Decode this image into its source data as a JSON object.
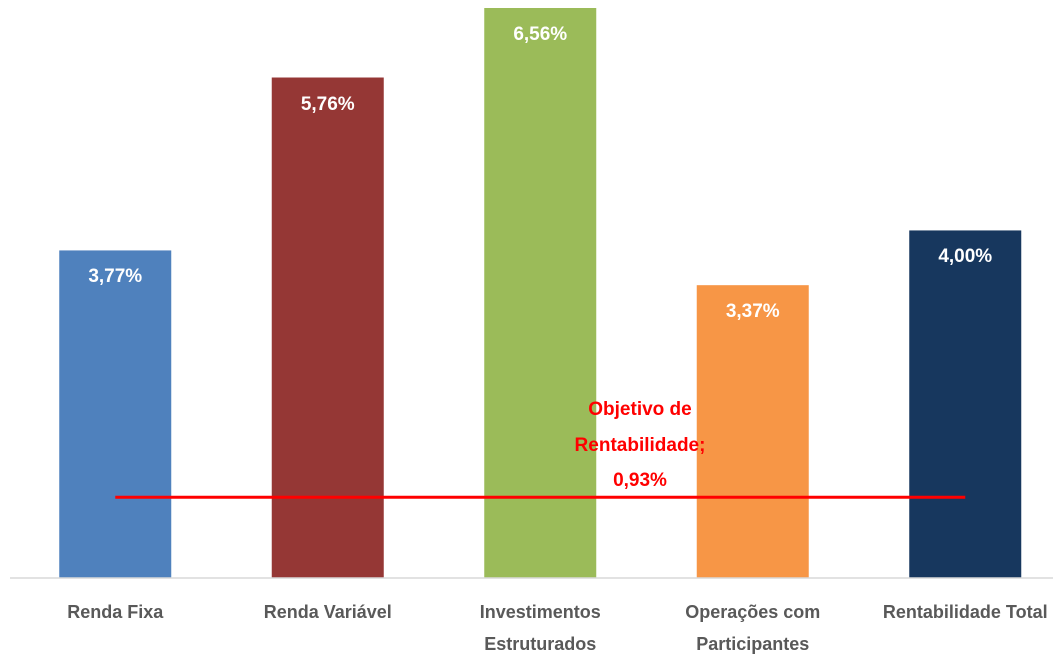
{
  "chart_data": {
    "type": "bar",
    "categories": [
      "Renda Fixa",
      "Renda Variável",
      "Investimentos Estruturados",
      "Operações com Participantes",
      "Rentabilidade Total"
    ],
    "values": [
      3.77,
      5.76,
      6.56,
      3.37,
      4.0
    ],
    "value_labels": [
      "3,77%",
      "5,76%",
      "6,56%",
      "3,37%",
      "4,00%"
    ],
    "colors": [
      "#4f81bd",
      "#953735",
      "#9bbb59",
      "#f79646",
      "#17375e"
    ],
    "ylim": [
      0,
      6.56
    ],
    "reference": {
      "text": "Objetivo de Rentabilidade;",
      "value": 0.93,
      "label": "0,93%",
      "color": "#ff0000"
    }
  }
}
